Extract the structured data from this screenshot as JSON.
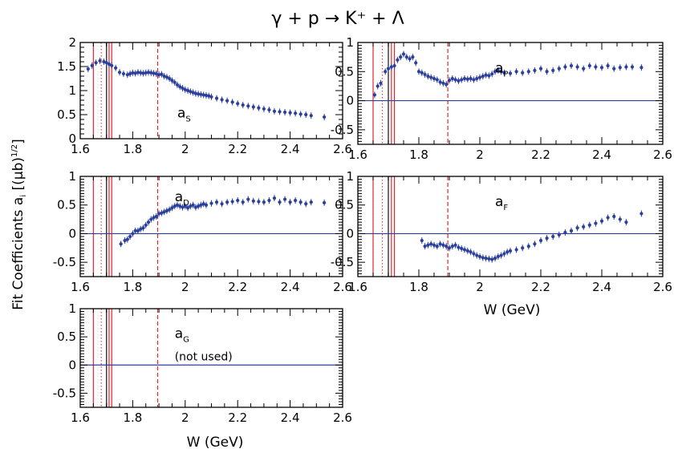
{
  "title": "γ + p → K⁺ + Λ",
  "ylabel": "Fit Coefficients aᵢ [(μb)¹ᐟ²]",
  "ylabel_parts": {
    "main": "Fit Coefficients a",
    "sub": "i",
    "bracket": " [(μb)",
    "sup": "1/2",
    "close": "]"
  },
  "xlabel": "W (GeV)",
  "colors": {
    "data": "#2b3f9c",
    "zero_line": "#2b3f9c",
    "resonance": "#e8232b",
    "frame": "#000000"
  },
  "chart_data": [
    {
      "type": "scatter",
      "label": "a",
      "label_sub": "S",
      "xlim": [
        1.6,
        2.6
      ],
      "ylim": [
        0,
        2
      ],
      "xticks": [
        "1.6",
        "1.8",
        "2",
        "2.2",
        "2.4",
        "2.6"
      ],
      "yticks": [
        "0",
        "0.5",
        "1",
        "1.5",
        "2"
      ],
      "zero_line": false,
      "series": [
        {
          "x": [
            1.63,
            1.645,
            1.66,
            1.675,
            1.69,
            1.7,
            1.71,
            1.72,
            1.735,
            1.75,
            1.765,
            1.78,
            1.79,
            1.8,
            1.81,
            1.82,
            1.83,
            1.84,
            1.85,
            1.86,
            1.87,
            1.88,
            1.89,
            1.9,
            1.91,
            1.92,
            1.93,
            1.94,
            1.95,
            1.96,
            1.97,
            1.98,
            1.99,
            2.0,
            2.01,
            2.02,
            2.03,
            2.04,
            2.05,
            2.06,
            2.07,
            2.08,
            2.09,
            2.1,
            2.12,
            2.14,
            2.16,
            2.18,
            2.2,
            2.22,
            2.24,
            2.26,
            2.28,
            2.3,
            2.32,
            2.34,
            2.36,
            2.38,
            2.4,
            2.42,
            2.44,
            2.46,
            2.48,
            2.53
          ],
          "y": [
            1.45,
            1.52,
            1.58,
            1.62,
            1.6,
            1.58,
            1.55,
            1.52,
            1.47,
            1.38,
            1.35,
            1.33,
            1.35,
            1.37,
            1.36,
            1.38,
            1.37,
            1.36,
            1.37,
            1.38,
            1.37,
            1.36,
            1.35,
            1.33,
            1.34,
            1.3,
            1.28,
            1.25,
            1.21,
            1.17,
            1.12,
            1.08,
            1.05,
            1.02,
            1.0,
            0.98,
            0.96,
            0.94,
            0.93,
            0.92,
            0.91,
            0.9,
            0.89,
            0.87,
            0.84,
            0.81,
            0.79,
            0.76,
            0.73,
            0.7,
            0.68,
            0.66,
            0.64,
            0.62,
            0.6,
            0.57,
            0.56,
            0.55,
            0.54,
            0.53,
            0.51,
            0.5,
            0.48,
            0.45
          ]
        }
      ]
    },
    {
      "type": "scatter",
      "label": "a",
      "label_sub": "P",
      "xlim": [
        1.6,
        2.6
      ],
      "ylim": [
        -0.75,
        1
      ],
      "xticks": [
        "1.6",
        "1.8",
        "2",
        "2.2",
        "2.4",
        "2.6"
      ],
      "yticks": [
        "-0.5",
        "0",
        "0.5",
        "1"
      ],
      "zero_line": true,
      "series": [
        {
          "x": [
            1.655,
            1.665,
            1.675,
            1.69,
            1.7,
            1.71,
            1.72,
            1.73,
            1.74,
            1.75,
            1.76,
            1.77,
            1.78,
            1.79,
            1.8,
            1.81,
            1.82,
            1.83,
            1.84,
            1.85,
            1.86,
            1.87,
            1.88,
            1.89,
            1.9,
            1.91,
            1.92,
            1.93,
            1.94,
            1.95,
            1.96,
            1.97,
            1.98,
            1.99,
            2.0,
            2.01,
            2.02,
            2.03,
            2.04,
            2.05,
            2.06,
            2.07,
            2.08,
            2.1,
            2.12,
            2.14,
            2.16,
            2.18,
            2.2,
            2.22,
            2.24,
            2.26,
            2.28,
            2.3,
            2.32,
            2.34,
            2.36,
            2.38,
            2.4,
            2.42,
            2.44,
            2.46,
            2.48,
            2.5,
            2.53
          ],
          "y": [
            0.1,
            0.25,
            0.3,
            0.5,
            0.55,
            0.58,
            0.6,
            0.7,
            0.75,
            0.8,
            0.75,
            0.72,
            0.75,
            0.65,
            0.5,
            0.48,
            0.45,
            0.42,
            0.4,
            0.38,
            0.36,
            0.32,
            0.3,
            0.28,
            0.35,
            0.38,
            0.36,
            0.34,
            0.36,
            0.38,
            0.37,
            0.38,
            0.36,
            0.38,
            0.4,
            0.42,
            0.44,
            0.43,
            0.46,
            0.5,
            0.52,
            0.5,
            0.48,
            0.47,
            0.5,
            0.48,
            0.5,
            0.52,
            0.55,
            0.5,
            0.52,
            0.55,
            0.58,
            0.6,
            0.58,
            0.55,
            0.6,
            0.58,
            0.57,
            0.6,
            0.55,
            0.57,
            0.58,
            0.58,
            0.57
          ]
        }
      ]
    },
    {
      "type": "scatter",
      "label": "a",
      "label_sub": "D",
      "xlim": [
        1.6,
        2.6
      ],
      "ylim": [
        -0.75,
        1
      ],
      "xticks": [
        "1.6",
        "1.8",
        "2",
        "2.2",
        "2.4",
        "2.6"
      ],
      "yticks": [
        "-0.5",
        "0",
        "0.5",
        "1"
      ],
      "zero_line": true,
      "series": [
        {
          "x": [
            1.755,
            1.77,
            1.78,
            1.79,
            1.8,
            1.81,
            1.82,
            1.83,
            1.84,
            1.85,
            1.86,
            1.87,
            1.88,
            1.89,
            1.9,
            1.91,
            1.92,
            1.93,
            1.94,
            1.95,
            1.96,
            1.97,
            1.98,
            1.99,
            2.0,
            2.01,
            2.02,
            2.03,
            2.04,
            2.05,
            2.06,
            2.07,
            2.08,
            2.1,
            2.12,
            2.14,
            2.16,
            2.18,
            2.2,
            2.22,
            2.24,
            2.26,
            2.28,
            2.3,
            2.32,
            2.34,
            2.36,
            2.38,
            2.4,
            2.42,
            2.44,
            2.46,
            2.48,
            2.53
          ],
          "y": [
            -0.18,
            -0.12,
            -0.1,
            -0.05,
            0.0,
            0.05,
            0.05,
            0.08,
            0.1,
            0.15,
            0.2,
            0.25,
            0.28,
            0.3,
            0.35,
            0.36,
            0.38,
            0.4,
            0.42,
            0.45,
            0.48,
            0.5,
            0.48,
            0.46,
            0.48,
            0.45,
            0.48,
            0.5,
            0.46,
            0.48,
            0.5,
            0.52,
            0.5,
            0.53,
            0.55,
            0.52,
            0.55,
            0.56,
            0.58,
            0.55,
            0.6,
            0.57,
            0.56,
            0.55,
            0.58,
            0.62,
            0.55,
            0.6,
            0.55,
            0.58,
            0.55,
            0.52,
            0.55,
            0.54
          ]
        }
      ]
    },
    {
      "type": "scatter",
      "label": "a",
      "label_sub": "F",
      "xlim": [
        1.6,
        2.6
      ],
      "ylim": [
        -0.75,
        1
      ],
      "xticks": [
        "1.6",
        "1.8",
        "2",
        "2.2",
        "2.4",
        "2.6"
      ],
      "yticks": [
        "-0.5",
        "0",
        "0.5",
        "1"
      ],
      "zero_line": true,
      "series": [
        {
          "x": [
            1.81,
            1.82,
            1.83,
            1.84,
            1.85,
            1.86,
            1.87,
            1.88,
            1.89,
            1.9,
            1.91,
            1.92,
            1.93,
            1.94,
            1.95,
            1.96,
            1.97,
            1.98,
            1.99,
            2.0,
            2.01,
            2.02,
            2.03,
            2.04,
            2.05,
            2.06,
            2.07,
            2.08,
            2.09,
            2.1,
            2.12,
            2.14,
            2.16,
            2.18,
            2.2,
            2.22,
            2.24,
            2.26,
            2.28,
            2.3,
            2.32,
            2.34,
            2.36,
            2.38,
            2.4,
            2.42,
            2.44,
            2.46,
            2.48,
            2.53
          ],
          "y": [
            -0.12,
            -0.22,
            -0.2,
            -0.18,
            -0.2,
            -0.22,
            -0.18,
            -0.2,
            -0.22,
            -0.25,
            -0.22,
            -0.2,
            -0.24,
            -0.26,
            -0.28,
            -0.3,
            -0.32,
            -0.35,
            -0.38,
            -0.4,
            -0.42,
            -0.43,
            -0.44,
            -0.45,
            -0.43,
            -0.4,
            -0.38,
            -0.35,
            -0.32,
            -0.3,
            -0.28,
            -0.25,
            -0.22,
            -0.18,
            -0.12,
            -0.08,
            -0.05,
            -0.02,
            0.02,
            0.05,
            0.1,
            0.12,
            0.15,
            0.18,
            0.22,
            0.28,
            0.3,
            0.25,
            0.2,
            0.35
          ]
        }
      ]
    },
    {
      "type": "scatter",
      "label": "a",
      "label_sub": "G",
      "note": "(not used)",
      "xlim": [
        1.6,
        2.6
      ],
      "ylim": [
        -0.75,
        1
      ],
      "xticks": [
        "1.6",
        "1.8",
        "2",
        "2.2",
        "2.4",
        "2.6"
      ],
      "yticks": [
        "-0.5",
        "0",
        "0.5",
        "1"
      ],
      "zero_line": true,
      "series": [
        {
          "x": [],
          "y": []
        }
      ]
    }
  ],
  "resonance_lines": [
    {
      "w": 1.65,
      "style": "solid"
    },
    {
      "w": 1.68,
      "style": "dotted"
    },
    {
      "w": 1.7,
      "style": "solid-dark"
    },
    {
      "w": 1.71,
      "style": "solid"
    },
    {
      "w": 1.72,
      "style": "solid"
    },
    {
      "w": 1.895,
      "style": "dashed"
    }
  ]
}
